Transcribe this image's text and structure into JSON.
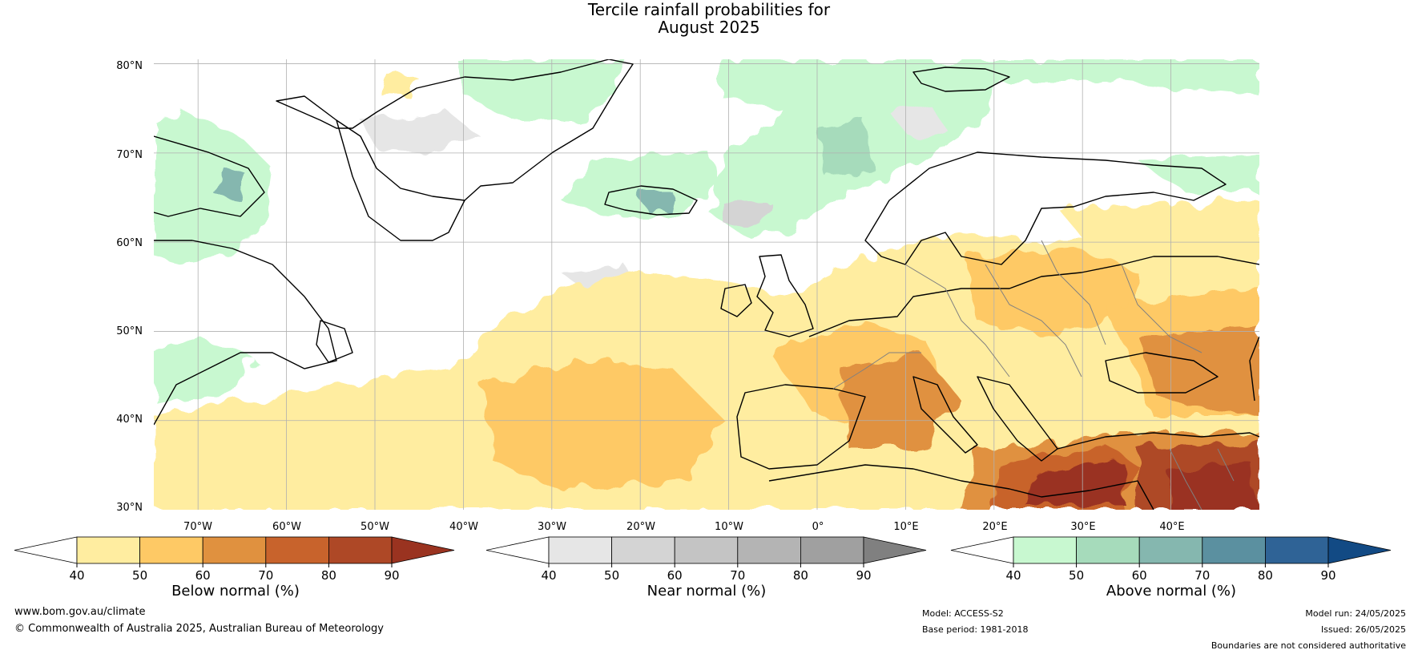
{
  "title": {
    "line1": "Tercile rainfall probabilities for",
    "line2": "August 2025"
  },
  "map": {
    "lat_range": [
      30,
      80.5
    ],
    "lon_range": [
      -75,
      50
    ],
    "lat_ticks": [
      "80°N",
      "70°N",
      "60°N",
      "50°N",
      "40°N",
      "30°N"
    ],
    "lon_ticks": [
      "70°W",
      "60°W",
      "50°W",
      "40°W",
      "30°W",
      "20°W",
      "10°W",
      "0°",
      "10°E",
      "20°E",
      "30°E",
      "40°E"
    ],
    "gridlines": true,
    "colors": {
      "land_outline": "#000000",
      "borders": "#808080",
      "gridline": "#b0b0b0"
    }
  },
  "colorbars": [
    {
      "title": "Below normal (%)",
      "ticks": [
        "40",
        "50",
        "60",
        "70",
        "80",
        "90"
      ],
      "colors": [
        "#ffffff",
        "#ffeda0",
        "#fec965",
        "#e0913f",
        "#c8632c",
        "#ae4826",
        "#9a3320"
      ]
    },
    {
      "title": "Near normal (%)",
      "ticks": [
        "40",
        "50",
        "60",
        "70",
        "80",
        "90"
      ],
      "colors": [
        "#ffffff",
        "#e6e6e6",
        "#d4d4d4",
        "#c4c4c4",
        "#b4b4b4",
        "#a0a0a0",
        "#808080"
      ]
    },
    {
      "title": "Above normal (%)",
      "ticks": [
        "40",
        "50",
        "60",
        "70",
        "80",
        "90"
      ],
      "colors": [
        "#ffffff",
        "#c8f8d0",
        "#a6dbbb",
        "#85b7af",
        "#5b90a0",
        "#2f6396",
        "#124a84"
      ]
    }
  ],
  "footer": {
    "website": "www.bom.gov.au/climate",
    "copyright": "© Commonwealth of Australia 2025, Australian Bureau of Meteorology",
    "model": "Model: ACCESS-S2",
    "base_period": "Base period: 1981-2018",
    "model_run": "Model run: 24/05/2025",
    "issued": "Issued: 26/05/2025",
    "disclaimer": "Boundaries are not considered authoritative"
  }
}
